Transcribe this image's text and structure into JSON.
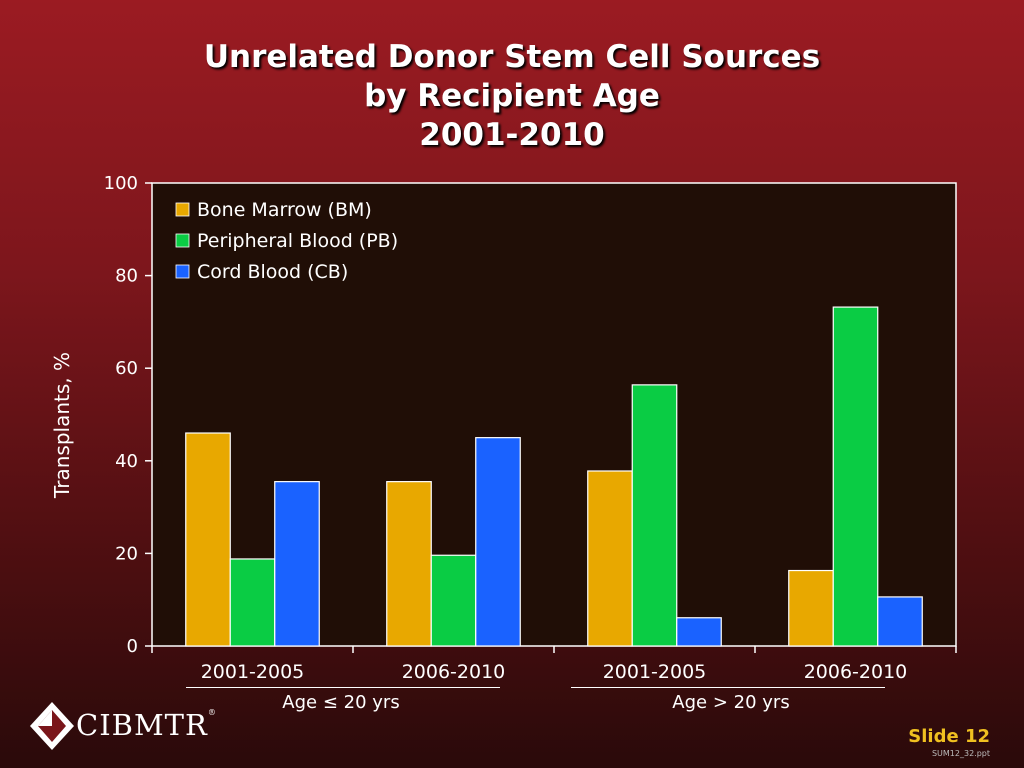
{
  "slide": {
    "title_lines": [
      "Unrelated Donor Stem Cell Sources",
      "by Recipient Age",
      "2001-2010"
    ],
    "slide_number": "Slide 12",
    "file_ref": "SUM12_32.ppt",
    "logo_text": "CIBMTR",
    "logo_mark": "®"
  },
  "groups": [
    {
      "label": "Age ≤ 20 yrs"
    },
    {
      "label": "Age > 20 yrs"
    }
  ],
  "chart_data": {
    "type": "bar",
    "categories": [
      "2001-2005",
      "2006-2010",
      "2001-2005",
      "2006-2010"
    ],
    "series": [
      {
        "name": "Bone Marrow (BM)",
        "color": "#e8a800",
        "values": [
          46,
          35.5,
          37.8,
          16.3
        ]
      },
      {
        "name": "Peripheral Blood (PB)",
        "color": "#0acc44",
        "values": [
          18.8,
          19.6,
          56.4,
          73.2
        ]
      },
      {
        "name": "Cord Blood (CB)",
        "color": "#1a62ff",
        "values": [
          35.5,
          45,
          6.1,
          10.6
        ]
      }
    ],
    "ylabel": "Transplants, %",
    "ylim": [
      0,
      100
    ],
    "yticks": [
      0,
      20,
      40,
      60,
      80,
      100
    ],
    "legend": "top-left",
    "plot_bg": "#200e06"
  }
}
